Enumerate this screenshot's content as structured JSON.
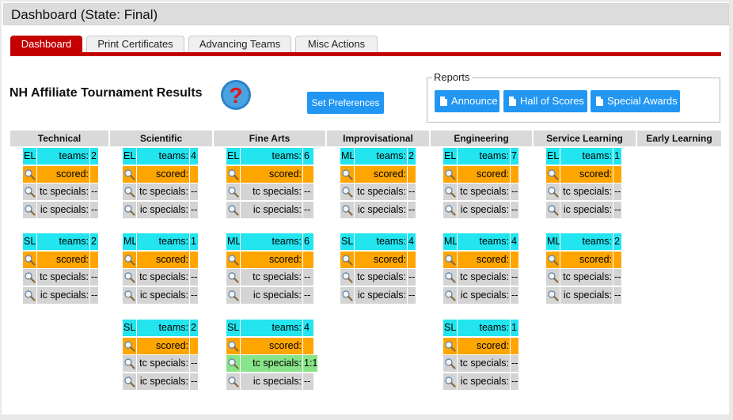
{
  "title": "Dashboard (State: Final)",
  "tabs": [
    {
      "label": "Dashboard",
      "active": true
    },
    {
      "label": "Print Certificates",
      "active": false
    },
    {
      "label": "Advancing Teams",
      "active": false
    },
    {
      "label": "Misc Actions",
      "active": false
    }
  ],
  "heading": "NH Affiliate Tournament Results",
  "help_icon": "help-question-icon",
  "set_preferences_label": "Set Preferences",
  "reports": {
    "legend": "Reports",
    "buttons": [
      "Announce",
      "Hall of Scores",
      "Special Awards"
    ]
  },
  "labels": {
    "teams": "teams:",
    "scored": "scored:",
    "tc_specials": "tc specials:",
    "ic_specials": "ic specials:"
  },
  "colors": {
    "accent_red": "#c40000",
    "button_blue": "#2196f3",
    "teams_cyan": "#22e5f0",
    "scored_orange": "#ffa500",
    "specials_gray": "#d4d4d4",
    "specials_green": "#88e488"
  },
  "columns": [
    {
      "name": "Technical",
      "blocks": [
        {
          "level": "EL",
          "teams": "2",
          "scored": "",
          "tc": "--",
          "ic": "--"
        },
        {
          "level": "SL",
          "teams": "2",
          "scored": "",
          "tc": "--",
          "ic": "--"
        }
      ]
    },
    {
      "name": "Scientific",
      "blocks": [
        {
          "level": "EL",
          "teams": "4",
          "scored": "",
          "tc": "--",
          "ic": "--"
        },
        {
          "level": "ML",
          "teams": "1",
          "scored": "",
          "tc": "--",
          "ic": "--"
        },
        {
          "level": "SL",
          "teams": "2",
          "scored": "",
          "tc": "--",
          "ic": "--"
        }
      ]
    },
    {
      "name": "Fine Arts",
      "blocks": [
        {
          "level": "EL",
          "teams": "6",
          "scored": "",
          "tc": "--",
          "ic": "--"
        },
        {
          "level": "ML",
          "teams": "6",
          "scored": "",
          "tc": "--",
          "ic": "--"
        },
        {
          "level": "SL",
          "teams": "4",
          "scored": "",
          "tc": "1:1",
          "ic": "--",
          "tc_highlight": true
        }
      ]
    },
    {
      "name": "Improvisational",
      "blocks": [
        {
          "level": "ML",
          "teams": "2",
          "scored": "",
          "tc": "--",
          "ic": "--"
        },
        {
          "level": "SL",
          "teams": "4",
          "scored": "",
          "tc": "--",
          "ic": "--"
        }
      ]
    },
    {
      "name": "Engineering",
      "blocks": [
        {
          "level": "EL",
          "teams": "7",
          "scored": "",
          "tc": "--",
          "ic": "--"
        },
        {
          "level": "ML",
          "teams": "4",
          "scored": "",
          "tc": "--",
          "ic": "--"
        },
        {
          "level": "SL",
          "teams": "1",
          "scored": "",
          "tc": "--",
          "ic": "--"
        }
      ]
    },
    {
      "name": "Service Learning",
      "blocks": [
        {
          "level": "EL",
          "teams": "1",
          "scored": "",
          "tc": "--",
          "ic": "--"
        },
        {
          "level": "ML",
          "teams": "2",
          "scored": "",
          "tc": "--",
          "ic": "--"
        }
      ]
    },
    {
      "name": "Early Learning",
      "blocks": []
    }
  ]
}
